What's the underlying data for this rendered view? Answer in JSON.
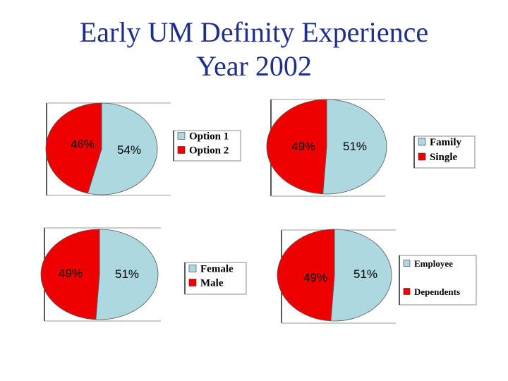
{
  "page": {
    "title_line1": "Early UM Definity Experience",
    "title_line2": "Year 2002"
  },
  "colors": {
    "light": "#add8e0",
    "red": "#ee0000"
  },
  "chart_data": [
    {
      "type": "pie",
      "slices": [
        {
          "label": "Option 1",
          "value": 54,
          "text": "54%",
          "color": "#add8e0"
        },
        {
          "label": "Option 2",
          "value": 46,
          "text": "46%",
          "color": "#ee0000"
        }
      ],
      "legend": [
        "Option 1",
        "Option 2"
      ],
      "legend_position": "right"
    },
    {
      "type": "pie",
      "slices": [
        {
          "label": "Family",
          "value": 51,
          "text": "51%",
          "color": "#add8e0"
        },
        {
          "label": "Single",
          "value": 49,
          "text": "49%",
          "color": "#ee0000"
        }
      ],
      "legend": [
        "Family",
        "Single"
      ],
      "legend_position": "right"
    },
    {
      "type": "pie",
      "slices": [
        {
          "label": "Female",
          "value": 51,
          "text": "51%",
          "color": "#add8e0"
        },
        {
          "label": "Male",
          "value": 49,
          "text": "49%",
          "color": "#ee0000"
        }
      ],
      "legend": [
        "Female",
        "Male"
      ],
      "legend_position": "right"
    },
    {
      "type": "pie",
      "slices": [
        {
          "label": "Employee",
          "value": 51,
          "text": "51%",
          "color": "#add8e0"
        },
        {
          "label": "Dependents",
          "value": 49,
          "text": "49%",
          "color": "#ee0000"
        }
      ],
      "legend": [
        "Employee",
        "Dependents"
      ],
      "legend_position": "right"
    }
  ]
}
